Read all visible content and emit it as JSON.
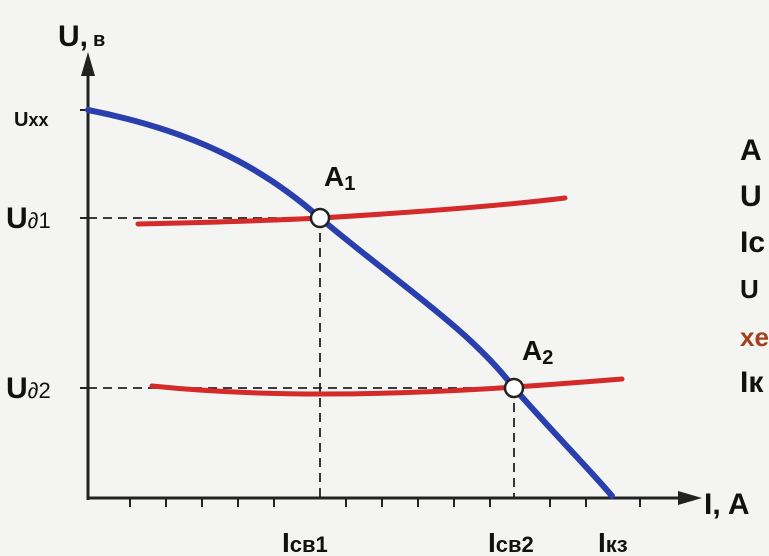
{
  "axes": {
    "y_label": {
      "main": "U,",
      "unit": "в"
    },
    "x_label": "I, A"
  },
  "y_marks": [
    {
      "main": "U",
      "sub": "xx"
    },
    {
      "main": "U",
      "sub": "∂1"
    },
    {
      "main": "U",
      "sub": "∂2"
    }
  ],
  "x_marks": [
    {
      "main": "I",
      "sub": "св1"
    },
    {
      "main": "I",
      "sub": "св2"
    },
    {
      "main": "I",
      "sub": "кз"
    }
  ],
  "points": [
    {
      "main": "A",
      "sub": "1"
    },
    {
      "main": "A",
      "sub": "2"
    }
  ],
  "side_text": [
    "A",
    "U",
    "Iс",
    "U",
    "xe",
    "Iк"
  ]
}
